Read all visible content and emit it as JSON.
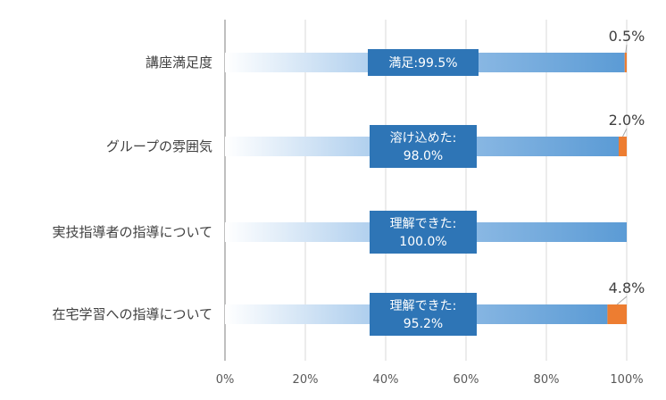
{
  "chart_data": {
    "type": "bar",
    "orientation": "horizontal",
    "stacked": true,
    "categories": [
      "講座満足度",
      "グループの雰囲気",
      "実技指導者の指導について",
      "在宅学習への指導について"
    ],
    "series": [
      {
        "values": [
          99.5,
          98.0,
          100.0,
          95.2
        ],
        "color": "#5b9bd5"
      },
      {
        "values": [
          0.5,
          2.0,
          0.0,
          4.8
        ],
        "color": "#ed7d31"
      }
    ],
    "callouts": [
      [
        "満足:99.5%"
      ],
      [
        "溶け込めた:",
        "98.0%"
      ],
      [
        "理解できた:",
        "100.0%"
      ],
      [
        "理解できた:",
        "95.2%"
      ]
    ],
    "small_labels": [
      "0.5%",
      "2.0%",
      "",
      "4.8%"
    ],
    "x_ticks": [
      "0%",
      "20%",
      "40%",
      "60%",
      "80%",
      "100%"
    ],
    "xlim": [
      0,
      100
    ],
    "grid": true,
    "colors": {
      "callout_bg": "#2e75b6",
      "gridline": "#d9d9d9",
      "axis": "#bfbfbf"
    }
  }
}
